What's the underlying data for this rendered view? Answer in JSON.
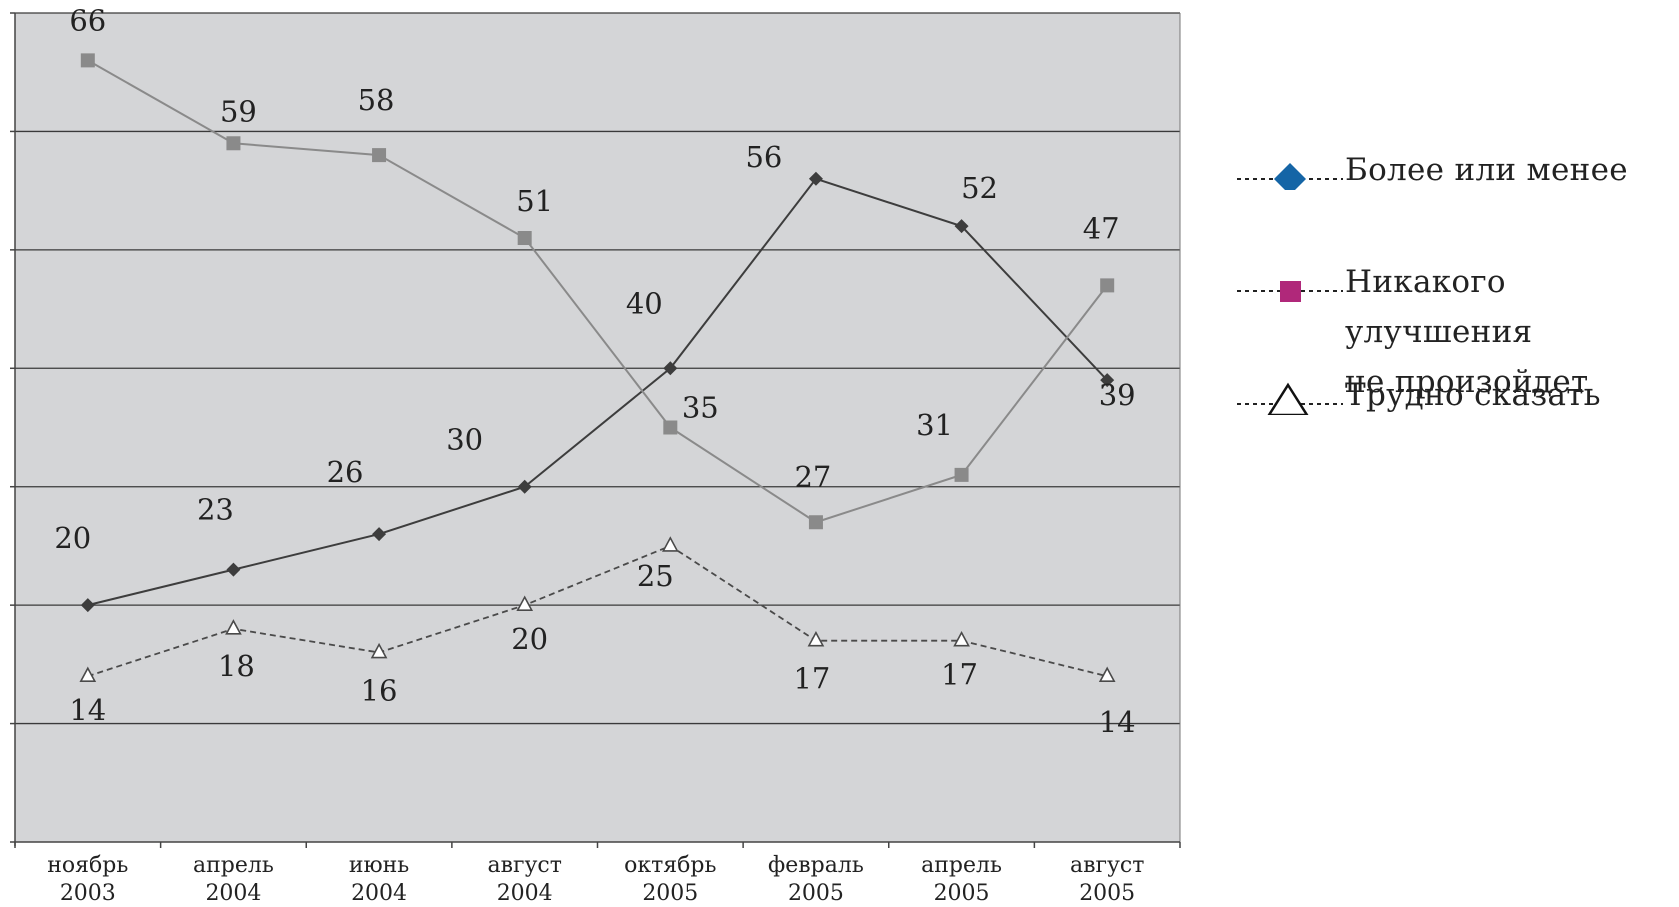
{
  "chart_data": {
    "type": "line",
    "categories": [
      [
        "ноябрь",
        "2003"
      ],
      [
        "апрель",
        "2004"
      ],
      [
        "июнь",
        "2004"
      ],
      [
        "август",
        "2004"
      ],
      [
        "октябрь",
        "2005"
      ],
      [
        "февраль",
        "2005"
      ],
      [
        "апрель",
        "2005"
      ],
      [
        "август",
        "2005"
      ]
    ],
    "ylim": [
      0,
      70
    ],
    "grid": true,
    "legend_position": "right",
    "series": [
      {
        "name": "Более или менее",
        "values": [
          20,
          23,
          26,
          30,
          40,
          56,
          52,
          39
        ],
        "color": "#3d3d3d",
        "legend_color": "#1565a6",
        "marker": "diamond",
        "style": "solid"
      },
      {
        "name_lines": [
          "Никакого улучшения",
          "не произойдет"
        ],
        "values": [
          66,
          59,
          58,
          51,
          35,
          27,
          31,
          47
        ],
        "color": "#8a8a8a",
        "legend_color": "#b0287a",
        "marker": "square",
        "style": "solid"
      },
      {
        "name": "Трудно сказать",
        "values": [
          14,
          18,
          16,
          20,
          25,
          17,
          17,
          14
        ],
        "color": "#4a4a4a",
        "legend_color": "#111111",
        "marker": "triangle",
        "style": "dashed"
      }
    ]
  }
}
